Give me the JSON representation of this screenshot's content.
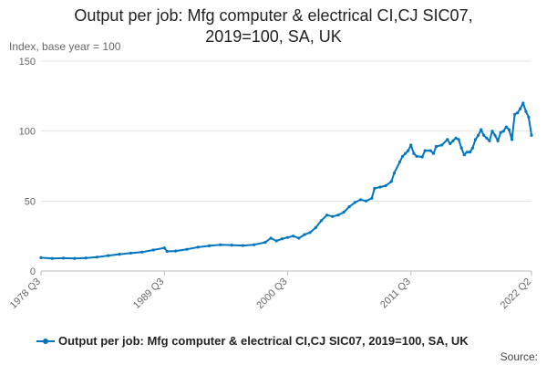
{
  "chart_data": {
    "type": "line",
    "title_lines": [
      "Output per job: Mfg computer & electrical CI,CJ SIC07,",
      "2019=100, SA, UK"
    ],
    "ylabel": "Index, base year = 100",
    "xlabel": "",
    "ylim": [
      0,
      150
    ],
    "yticks": [
      0,
      50,
      100,
      150
    ],
    "xlim": [
      1978.5,
      2022.25
    ],
    "xtick_labels": [
      "1978 Q3",
      "1989 Q3",
      "2000 Q3",
      "2011 Q3",
      "2022 Q2"
    ],
    "xtick_positions": [
      1978.5,
      1989.5,
      2000.5,
      2011.5,
      2022.25
    ],
    "grid": true,
    "legend_position": "bottom",
    "source_label": "Source:",
    "series": [
      {
        "name": "Output per job: Mfg computer & electrical CI,CJ SIC07, 2019=100, SA, UK",
        "color": "#0076c0",
        "points": [
          [
            1978.5,
            9.5
          ],
          [
            1979.5,
            9.0
          ],
          [
            1980.5,
            9.2
          ],
          [
            1981.5,
            9.0
          ],
          [
            1982.5,
            9.3
          ],
          [
            1983.5,
            10.0
          ],
          [
            1984.5,
            11.0
          ],
          [
            1985.5,
            12.0
          ],
          [
            1986.5,
            12.8
          ],
          [
            1987.5,
            13.5
          ],
          [
            1988.5,
            15.0
          ],
          [
            1989.5,
            16.5
          ],
          [
            1989.75,
            14.0
          ],
          [
            1990.5,
            14.3
          ],
          [
            1991.5,
            15.5
          ],
          [
            1992.5,
            17.0
          ],
          [
            1993.5,
            18.0
          ],
          [
            1994.5,
            18.8
          ],
          [
            1995.5,
            18.5
          ],
          [
            1996.5,
            18.2
          ],
          [
            1997.5,
            18.8
          ],
          [
            1998.5,
            20.5
          ],
          [
            1999.0,
            23.5
          ],
          [
            1999.5,
            21.5
          ],
          [
            2000.0,
            23.0
          ],
          [
            2000.5,
            24.0
          ],
          [
            2001.0,
            25.0
          ],
          [
            2001.5,
            23.5
          ],
          [
            2002.0,
            26.0
          ],
          [
            2002.5,
            27.5
          ],
          [
            2003.0,
            31.0
          ],
          [
            2003.5,
            36.0
          ],
          [
            2004.0,
            40.0
          ],
          [
            2004.5,
            39.0
          ],
          [
            2005.0,
            40.0
          ],
          [
            2005.5,
            42.0
          ],
          [
            2006.0,
            46.0
          ],
          [
            2006.5,
            49.0
          ],
          [
            2007.0,
            51.0
          ],
          [
            2007.5,
            50.0
          ],
          [
            2008.0,
            52.0
          ],
          [
            2008.25,
            59.0
          ],
          [
            2008.75,
            60.0
          ],
          [
            2009.25,
            61.0
          ],
          [
            2009.75,
            64.0
          ],
          [
            2010.0,
            70.0
          ],
          [
            2010.5,
            78.0
          ],
          [
            2010.75,
            82.0
          ],
          [
            2011.0,
            84.0
          ],
          [
            2011.25,
            86.0
          ],
          [
            2011.5,
            90.0
          ],
          [
            2011.75,
            84.0
          ],
          [
            2012.0,
            82.0
          ],
          [
            2012.5,
            81.5
          ],
          [
            2012.75,
            86.0
          ],
          [
            2013.25,
            86.0
          ],
          [
            2013.5,
            84.0
          ],
          [
            2013.75,
            89.0
          ],
          [
            2014.25,
            90.0
          ],
          [
            2014.75,
            94.0
          ],
          [
            2015.0,
            91.0
          ],
          [
            2015.25,
            93.0
          ],
          [
            2015.5,
            95.0
          ],
          [
            2015.75,
            94.0
          ],
          [
            2016.0,
            88.0
          ],
          [
            2016.25,
            83.0
          ],
          [
            2016.5,
            85.0
          ],
          [
            2016.75,
            85.0
          ],
          [
            2017.0,
            88.0
          ],
          [
            2017.25,
            94.0
          ],
          [
            2017.5,
            97.0
          ],
          [
            2017.75,
            101.0
          ],
          [
            2018.0,
            97.0
          ],
          [
            2018.25,
            95.0
          ],
          [
            2018.5,
            93.0
          ],
          [
            2018.75,
            100.0
          ],
          [
            2019.0,
            97.0
          ],
          [
            2019.25,
            93.0
          ],
          [
            2019.5,
            99.0
          ],
          [
            2019.75,
            100.0
          ],
          [
            2020.0,
            103.0
          ],
          [
            2020.25,
            101.0
          ],
          [
            2020.5,
            94.0
          ],
          [
            2020.75,
            112.0
          ],
          [
            2021.0,
            113.0
          ],
          [
            2021.25,
            116.0
          ],
          [
            2021.5,
            120.0
          ],
          [
            2021.75,
            114.0
          ],
          [
            2022.0,
            110.0
          ],
          [
            2022.25,
            97.0
          ]
        ]
      }
    ]
  }
}
